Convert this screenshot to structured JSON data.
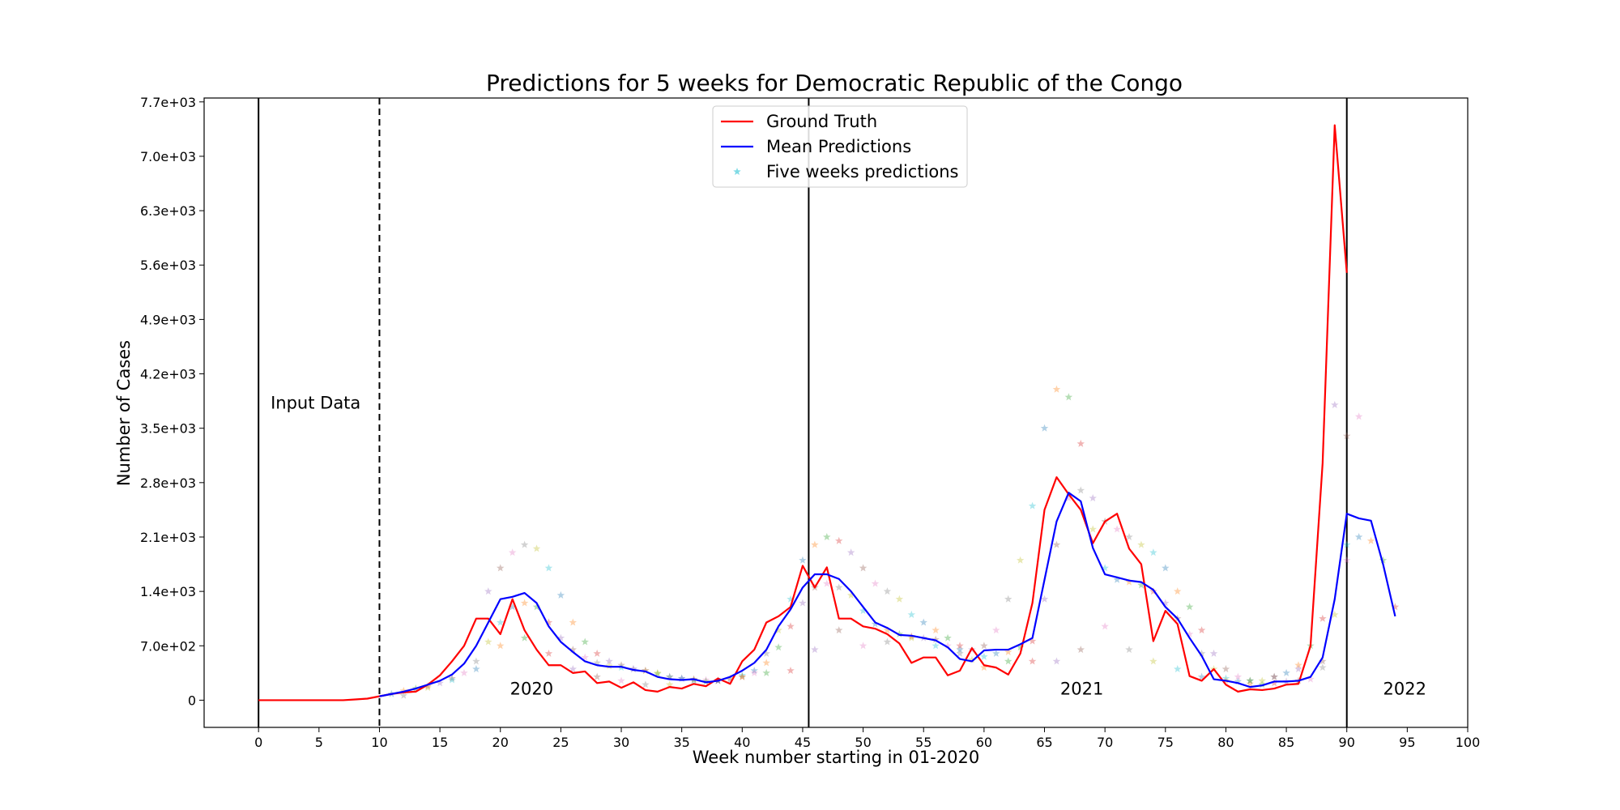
{
  "chart_data": {
    "type": "line",
    "title": "Predictions for 5 weeks for Democratic Republic of the Congo",
    "xlabel": "Week number starting in 01-2020",
    "ylabel": "Number of Cases",
    "xlim": [
      -4.5,
      100
    ],
    "ylim": [
      -350,
      7750
    ],
    "x_ticks": [
      0,
      5,
      10,
      15,
      20,
      25,
      30,
      35,
      40,
      45,
      50,
      55,
      60,
      65,
      70,
      75,
      80,
      85,
      90,
      95,
      100
    ],
    "y_ticks": [
      0,
      700,
      1400,
      2100,
      2800,
      3500,
      4200,
      4900,
      5600,
      6300,
      7000,
      7700
    ],
    "y_tick_labels": [
      "0",
      "7.0e+02",
      "1.4e+03",
      "2.1e+03",
      "2.8e+03",
      "3.5e+03",
      "4.2e+03",
      "4.9e+03",
      "5.6e+03",
      "6.3e+03",
      "7.0e+03",
      "7.7e+03"
    ],
    "grid": false,
    "legend_position": "top-center",
    "legend": [
      {
        "label": "Ground Truth",
        "marker": "line",
        "color": "#ff0000"
      },
      {
        "label": "Mean Predictions",
        "marker": "line",
        "color": "#0000ff"
      },
      {
        "label": "Five weeks predictions",
        "marker": "star",
        "color": "#17becf"
      }
    ],
    "vertical_lines": [
      {
        "x": 0,
        "style": "solid"
      },
      {
        "x": 10,
        "style": "dashed"
      },
      {
        "x": 45.5,
        "style": "solid"
      },
      {
        "x": 90,
        "style": "solid"
      }
    ],
    "annotations": [
      {
        "text": "Input Data",
        "x": 1,
        "y": 3750
      },
      {
        "text": "2020",
        "x": 20.8,
        "y": 70
      },
      {
        "text": "2021",
        "x": 66.3,
        "y": 70
      },
      {
        "text": "2022",
        "x": 93,
        "y": 70
      }
    ],
    "series": [
      {
        "name": "Ground Truth",
        "color": "#ff0000",
        "x": [
          0,
          1,
          2,
          3,
          4,
          5,
          6,
          7,
          8,
          9,
          10,
          11,
          12,
          13,
          14,
          15,
          16,
          17,
          18,
          19,
          20,
          21,
          22,
          23,
          24,
          25,
          26,
          27,
          28,
          29,
          30,
          31,
          32,
          33,
          34,
          35,
          36,
          37,
          38,
          39,
          40,
          41,
          42,
          43,
          44,
          45,
          46,
          47,
          48,
          49,
          50,
          51,
          52,
          53,
          54,
          55,
          56,
          57,
          58,
          59,
          60,
          61,
          62,
          63,
          64,
          65,
          66,
          67,
          68,
          69,
          70,
          71,
          72,
          73,
          74,
          75,
          76,
          77,
          78,
          79,
          80,
          81,
          82,
          83,
          84,
          85,
          86,
          87,
          88,
          89,
          90
        ],
        "y": [
          0,
          0,
          0,
          0,
          0,
          0,
          0,
          0,
          10,
          20,
          50,
          80,
          100,
          110,
          200,
          320,
          500,
          700,
          1050,
          1050,
          850,
          1300,
          900,
          650,
          450,
          450,
          350,
          370,
          220,
          240,
          160,
          230,
          130,
          110,
          170,
          150,
          210,
          180,
          280,
          210,
          500,
          650,
          1000,
          1080,
          1200,
          1730,
          1450,
          1710,
          1050,
          1050,
          950,
          920,
          850,
          730,
          480,
          550,
          550,
          320,
          380,
          670,
          450,
          420,
          330,
          600,
          1250,
          2450,
          2870,
          2650,
          2450,
          2020,
          2300,
          2400,
          1950,
          1750,
          760,
          1150,
          980,
          310,
          250,
          400,
          200,
          110,
          140,
          130,
          150,
          200,
          210,
          700,
          3050,
          7400,
          5500
        ]
      },
      {
        "name": "Mean Predictions",
        "color": "#0000ff",
        "x": [
          10,
          11,
          12,
          13,
          14,
          15,
          16,
          17,
          18,
          19,
          20,
          21,
          22,
          23,
          24,
          25,
          26,
          27,
          28,
          29,
          30,
          31,
          32,
          33,
          34,
          35,
          36,
          37,
          38,
          39,
          40,
          41,
          42,
          43,
          44,
          45,
          46,
          47,
          48,
          49,
          50,
          51,
          52,
          53,
          54,
          55,
          56,
          57,
          58,
          59,
          60,
          61,
          62,
          63,
          64,
          65,
          66,
          67,
          68,
          69,
          70,
          71,
          72,
          73,
          74,
          75,
          76,
          77,
          78,
          79,
          80,
          81,
          82,
          83,
          84,
          85,
          86,
          87,
          88,
          89,
          90,
          91,
          92,
          93,
          94
        ],
        "y": [
          50,
          80,
          110,
          150,
          200,
          250,
          330,
          470,
          700,
          1000,
          1300,
          1330,
          1380,
          1250,
          950,
          750,
          620,
          500,
          450,
          430,
          430,
          390,
          370,
          300,
          270,
          260,
          270,
          230,
          250,
          300,
          380,
          480,
          650,
          950,
          1170,
          1450,
          1620,
          1620,
          1560,
          1400,
          1200,
          1000,
          930,
          840,
          830,
          800,
          770,
          680,
          530,
          500,
          640,
          650,
          650,
          720,
          800,
          1550,
          2300,
          2670,
          2560,
          1960,
          1620,
          1580,
          1540,
          1520,
          1420,
          1200,
          1050,
          800,
          570,
          270,
          250,
          220,
          170,
          190,
          240,
          240,
          250,
          300,
          550,
          1300,
          2400,
          2340,
          2310,
          1750,
          1080
        ]
      },
      {
        "name": "Five weeks predictions",
        "color": "#17becf",
        "marker": "star",
        "x": [
          11,
          12,
          13,
          14,
          15,
          16,
          17,
          18,
          19,
          20,
          21,
          22,
          23,
          24,
          25,
          26,
          27,
          28,
          29,
          30,
          31,
          32,
          33,
          34,
          35,
          36,
          37,
          38,
          39,
          40,
          41,
          42,
          43,
          44,
          45,
          46,
          47,
          48,
          49,
          50,
          51,
          52,
          53,
          54,
          55,
          56,
          57,
          58,
          59,
          60,
          61,
          62,
          63,
          64,
          65,
          66,
          67,
          68,
          69,
          70,
          71,
          72,
          73,
          74,
          75,
          76,
          77,
          78,
          79,
          80,
          81,
          82,
          83,
          84,
          85,
          86,
          87,
          88,
          89,
          90,
          91,
          92,
          93,
          94,
          19,
          20,
          21,
          22,
          23,
          24,
          25,
          26,
          27,
          28,
          29,
          30,
          31,
          32,
          33,
          34,
          35,
          36,
          37,
          38,
          39,
          40,
          41,
          42,
          43,
          44,
          45,
          46,
          47,
          48,
          49,
          50,
          51,
          52,
          53,
          54,
          55,
          56,
          57,
          58,
          59,
          60,
          61,
          62,
          63,
          64,
          65,
          66,
          67,
          68,
          69,
          70,
          71,
          72,
          73,
          74,
          75,
          76,
          77,
          78,
          79,
          80,
          81,
          82,
          83,
          84,
          85,
          86,
          87,
          88,
          89,
          90,
          91,
          12,
          14,
          16,
          18,
          20,
          22,
          24,
          26,
          28,
          30,
          32,
          34,
          36,
          38,
          40,
          42,
          44,
          46,
          48,
          50,
          52,
          54,
          56,
          58,
          60,
          62,
          64,
          66,
          68,
          70,
          72,
          74,
          76,
          78,
          80,
          82,
          84,
          86,
          88,
          90
        ],
        "y": [
          80,
          120,
          150,
          180,
          220,
          280,
          350,
          500,
          750,
          1000,
          1200,
          1250,
          1200,
          1000,
          800,
          650,
          550,
          480,
          440,
          420,
          400,
          380,
          340,
          300,
          280,
          270,
          260,
          250,
          280,
          320,
          380,
          480,
          680,
          950,
          1250,
          1450,
          1500,
          1450,
          1350,
          1150,
          980,
          900,
          850,
          820,
          800,
          780,
          700,
          600,
          520,
          560,
          600,
          620,
          680,
          760,
          1300,
          2000,
          2600,
          2700,
          2200,
          1700,
          1550,
          1520,
          1480,
          1400,
          1250,
          1050,
          850,
          600,
          400,
          280,
          240,
          210,
          200,
          220,
          240,
          250,
          270,
          420,
          1100,
          2000,
          2100,
          2050,
          1800,
          1200,
          1400,
          1700,
          1900,
          2000,
          1950,
          1700,
          1350,
          1000,
          750,
          600,
          500,
          450,
          400,
          380,
          350,
          300,
          280,
          260,
          240,
          250,
          260,
          300,
          350,
          600,
          900,
          1300,
          1800,
          2000,
          2100,
          2050,
          1900,
          1700,
          1500,
          1400,
          1300,
          1100,
          1000,
          900,
          800,
          700,
          650,
          700,
          900,
          1300,
          1800,
          2500,
          3500,
          4000,
          3900,
          3300,
          2600,
          2300,
          2200,
          2100,
          2000,
          1900,
          1700,
          1400,
          1200,
          900,
          600,
          400,
          300,
          250,
          250,
          300,
          350,
          450,
          700,
          1050,
          3800,
          3400,
          3650,
          60,
          160,
          260,
          400,
          700,
          800,
          600,
          400,
          300,
          250,
          200,
          200,
          250,
          250,
          300,
          350,
          380,
          650,
          900,
          700,
          750,
          800,
          700,
          650,
          420,
          500,
          500,
          500,
          650,
          950,
          650,
          500,
          400,
          300,
          250,
          250,
          300,
          400,
          500,
          1800
        ]
      }
    ]
  }
}
